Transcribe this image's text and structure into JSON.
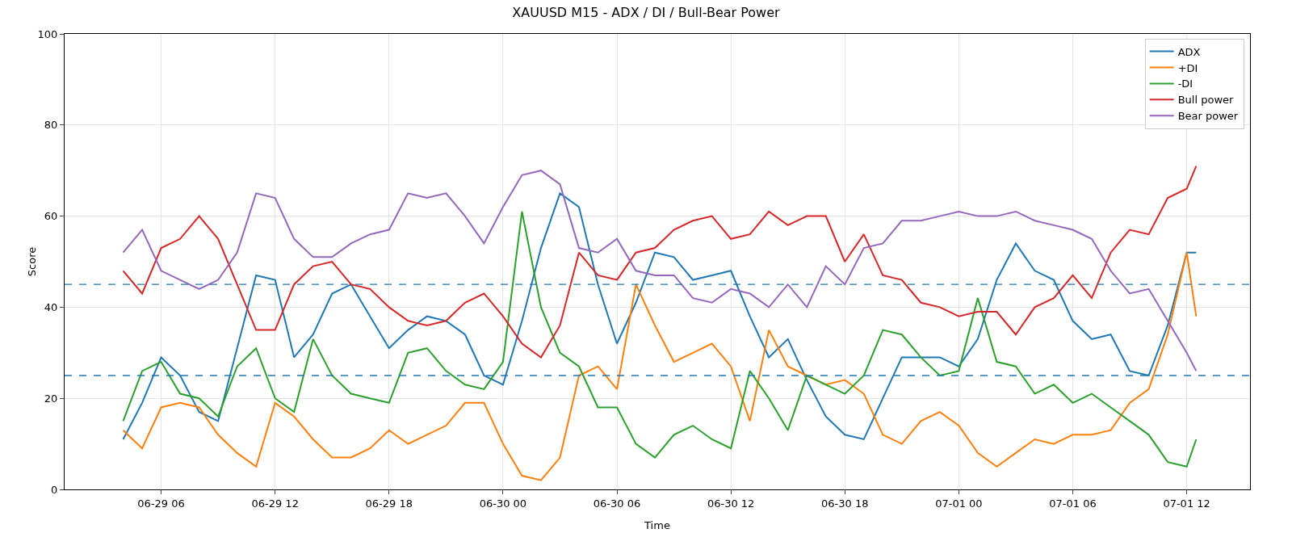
{
  "chart_data": {
    "type": "line",
    "title": "XAUUSD M15 - ADX / DI / Bull-Bear Power",
    "xlabel": "Time",
    "ylabel": "Score",
    "x": [
      "--06-29T04:00",
      "--06-29T05:00",
      "--06-29T06:00",
      "--06-29T07:00",
      "--06-29T08:00",
      "--06-29T09:00",
      "--06-29T10:00",
      "--06-29T11:00",
      "--06-29T12:00",
      "--06-29T13:00",
      "--06-29T14:00",
      "--06-29T15:00",
      "--06-29T16:00",
      "--06-29T17:00",
      "--06-29T18:00",
      "--06-29T19:00",
      "--06-29T20:00",
      "--06-29T21:00",
      "--06-29T22:00",
      "--06-29T23:00",
      "--06-30T00:00",
      "--06-30T01:00",
      "--06-30T02:00",
      "--06-30T03:00",
      "--06-30T04:00",
      "--06-30T05:00",
      "--06-30T06:00",
      "--06-30T07:00",
      "--06-30T08:00",
      "--06-30T09:00",
      "--06-30T10:00",
      "--06-30T11:00",
      "--06-30T12:00",
      "--06-30T13:00",
      "--06-30T14:00",
      "--06-30T15:00",
      "--06-30T16:00",
      "--06-30T17:00",
      "--06-30T18:00",
      "--06-30T19:00",
      "--06-30T20:00",
      "--06-30T21:00",
      "--06-30T22:00",
      "--06-30T23:00",
      "--07-01T00:00",
      "--07-01T01:00",
      "--07-01T02:00",
      "--07-01T03:00",
      "--07-01T04:00",
      "--07-01T05:00",
      "--07-01T06:00",
      "--07-01T07:00",
      "--07-01T08:00",
      "--07-01T09:00",
      "--07-01T10:00",
      "--07-01T11:00",
      "--07-01T12:00",
      "--07-01T12:30"
    ],
    "series": [
      {
        "name": "ADX",
        "color": "#1f77b4",
        "values": [
          11,
          19,
          29,
          25,
          17,
          15,
          31,
          47,
          46,
          29,
          34,
          43,
          45,
          38,
          31,
          35,
          38,
          37,
          34,
          25,
          23,
          37,
          53,
          65,
          62,
          45,
          32,
          41,
          52,
          51,
          46,
          47,
          48,
          38,
          29,
          33,
          24,
          16,
          12,
          11,
          20,
          29,
          29,
          29,
          27,
          33,
          46,
          54,
          48,
          46,
          37,
          33,
          34,
          26,
          25,
          36,
          52,
          52
        ]
      },
      {
        "name": "+DI",
        "color": "#ff7f0e",
        "values": [
          13,
          9,
          18,
          19,
          18,
          12,
          8,
          5,
          19,
          16,
          11,
          7,
          7,
          9,
          13,
          10,
          12,
          14,
          19,
          19,
          10,
          3,
          2,
          7,
          25,
          27,
          22,
          45,
          36,
          28,
          30,
          32,
          27,
          15,
          35,
          27,
          25,
          23,
          24,
          21,
          12,
          10,
          15,
          17,
          14,
          8,
          5,
          8,
          11,
          10,
          12,
          12,
          13,
          19,
          22,
          34,
          52,
          38
        ]
      },
      {
        "name": "-DI",
        "color": "#2ca02c",
        "values": [
          15,
          26,
          28,
          21,
          20,
          16,
          27,
          31,
          20,
          17,
          33,
          25,
          21,
          20,
          19,
          30,
          31,
          26,
          23,
          22,
          28,
          61,
          40,
          30,
          27,
          18,
          18,
          10,
          7,
          12,
          14,
          11,
          9,
          26,
          20,
          13,
          25,
          23,
          21,
          25,
          35,
          34,
          29,
          25,
          26,
          42,
          28,
          27,
          21,
          23,
          19,
          21,
          18,
          15,
          12,
          6,
          5,
          11
        ]
      },
      {
        "name": "Bull power",
        "color": "#d62728",
        "values": [
          48,
          43,
          53,
          55,
          60,
          55,
          45,
          35,
          35,
          45,
          49,
          50,
          45,
          44,
          40,
          37,
          36,
          37,
          41,
          43,
          38,
          32,
          29,
          36,
          52,
          47,
          46,
          52,
          53,
          57,
          59,
          60,
          55,
          56,
          61,
          58,
          60,
          60,
          50,
          56,
          47,
          46,
          41,
          40,
          38,
          39,
          39,
          34,
          40,
          42,
          47,
          42,
          52,
          57,
          56,
          64,
          66,
          71
        ]
      },
      {
        "name": "Bear power",
        "color": "#9467bd",
        "values": [
          52,
          57,
          48,
          46,
          44,
          46,
          52,
          65,
          64,
          55,
          51,
          51,
          54,
          56,
          57,
          65,
          64,
          65,
          60,
          54,
          62,
          69,
          70,
          67,
          53,
          52,
          55,
          48,
          47,
          47,
          42,
          41,
          44,
          43,
          40,
          45,
          40,
          49,
          45,
          53,
          54,
          59,
          59,
          60,
          61,
          60,
          60,
          61,
          59,
          58,
          57,
          55,
          48,
          43,
          44,
          37,
          30,
          26
        ]
      }
    ],
    "xlim": [
      "--06-29T00:55",
      "--07-01T15:20"
    ],
    "xticks": [
      {
        "value": "--06-29T06:00",
        "label": "06-29 06"
      },
      {
        "value": "--06-29T12:00",
        "label": "06-29 12"
      },
      {
        "value": "--06-29T18:00",
        "label": "06-29 18"
      },
      {
        "value": "--06-30T00:00",
        "label": "06-30 00"
      },
      {
        "value": "--06-30T06:00",
        "label": "06-30 06"
      },
      {
        "value": "--06-30T12:00",
        "label": "06-30 12"
      },
      {
        "value": "--06-30T18:00",
        "label": "06-30 18"
      },
      {
        "value": "--07-01T00:00",
        "label": "07-01 00"
      },
      {
        "value": "--07-01T06:00",
        "label": "07-01 06"
      },
      {
        "value": "--07-01T12:00",
        "label": "07-01 12"
      }
    ],
    "ylim": [
      0,
      100
    ],
    "yticks": [
      0,
      20,
      40,
      60,
      80,
      100
    ],
    "ref_lines": [
      {
        "axis": "y",
        "value": 45,
        "color": "#1f77b4",
        "line_style": "dashed"
      },
      {
        "axis": "y",
        "value": 25,
        "color": "#1f77b4",
        "line_style": "dashed"
      }
    ],
    "grid": true,
    "legend": "top right",
    "marker": "none",
    "line_style": "solid"
  }
}
